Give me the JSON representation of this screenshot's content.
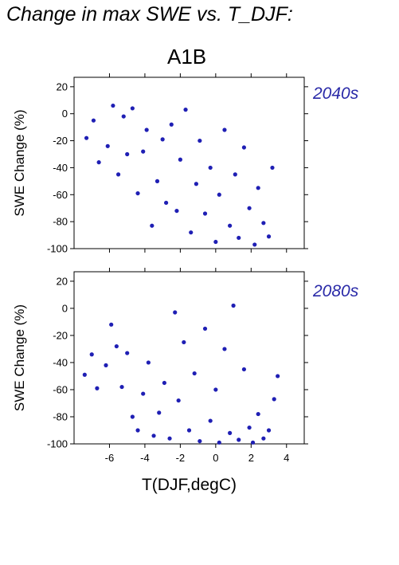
{
  "header": {
    "title": "Change in max SWE vs. T_DJF:",
    "scenario": "A1B"
  },
  "chart_data": [
    {
      "type": "scatter",
      "panel_label": "2040s",
      "xlabel": "",
      "ylabel": "SWE Change (%)",
      "xlim": [
        -8,
        5
      ],
      "ylim": [
        -100,
        27
      ],
      "xticks": [
        -6,
        -4,
        -2,
        0,
        2,
        4
      ],
      "yticks": [
        -100,
        -80,
        -60,
        -40,
        -20,
        0,
        20
      ],
      "marker_color": "#1f1fb4",
      "series": [
        {
          "points": [
            [
              -7.3,
              -18
            ],
            [
              -6.9,
              -5
            ],
            [
              -6.6,
              -36
            ],
            [
              -6.1,
              -24
            ],
            [
              -5.8,
              6
            ],
            [
              -5.5,
              -45
            ],
            [
              -5.2,
              -2
            ],
            [
              -5.0,
              -30
            ],
            [
              -4.7,
              4
            ],
            [
              -4.4,
              -59
            ],
            [
              -4.1,
              -28
            ],
            [
              -3.9,
              -12
            ],
            [
              -3.6,
              -83
            ],
            [
              -3.3,
              -50
            ],
            [
              -3.0,
              -19
            ],
            [
              -2.8,
              -66
            ],
            [
              -2.5,
              -8
            ],
            [
              -2.2,
              -72
            ],
            [
              -2.0,
              -34
            ],
            [
              -1.7,
              3
            ],
            [
              -1.4,
              -88
            ],
            [
              -1.1,
              -52
            ],
            [
              -0.9,
              -20
            ],
            [
              -0.6,
              -74
            ],
            [
              -0.3,
              -40
            ],
            [
              0.0,
              -95
            ],
            [
              0.2,
              -60
            ],
            [
              0.5,
              -12
            ],
            [
              0.8,
              -83
            ],
            [
              1.1,
              -45
            ],
            [
              1.3,
              -92
            ],
            [
              1.6,
              -25
            ],
            [
              1.9,
              -70
            ],
            [
              2.2,
              -97
            ],
            [
              2.4,
              -55
            ],
            [
              2.7,
              -81
            ],
            [
              3.0,
              -91
            ],
            [
              3.2,
              -40
            ]
          ]
        }
      ]
    },
    {
      "type": "scatter",
      "panel_label": "2080s",
      "xlabel": "T(DJF,degC)",
      "ylabel": "SWE Change (%)",
      "xlim": [
        -8,
        5
      ],
      "ylim": [
        -100,
        27
      ],
      "xticks": [
        -6,
        -4,
        -2,
        0,
        2,
        4
      ],
      "yticks": [
        -100,
        -80,
        -60,
        -40,
        -20,
        0,
        20
      ],
      "marker_color": "#1f1fb4",
      "series": [
        {
          "points": [
            [
              -7.4,
              -49
            ],
            [
              -7.0,
              -34
            ],
            [
              -6.7,
              -59
            ],
            [
              -6.2,
              -42
            ],
            [
              -5.9,
              -12
            ],
            [
              -5.6,
              -28
            ],
            [
              -5.3,
              -58
            ],
            [
              -5.0,
              -33
            ],
            [
              -4.7,
              -80
            ],
            [
              -4.4,
              -90
            ],
            [
              -4.1,
              -63
            ],
            [
              -3.8,
              -40
            ],
            [
              -3.5,
              -94
            ],
            [
              -3.2,
              -77
            ],
            [
              -2.9,
              -55
            ],
            [
              -2.6,
              -96
            ],
            [
              -2.3,
              -3
            ],
            [
              -2.1,
              -68
            ],
            [
              -1.8,
              -25
            ],
            [
              -1.5,
              -90
            ],
            [
              -1.2,
              -48
            ],
            [
              -0.9,
              -98
            ],
            [
              -0.6,
              -15
            ],
            [
              -0.3,
              -83
            ],
            [
              0.0,
              -60
            ],
            [
              0.2,
              -99
            ],
            [
              0.5,
              -30
            ],
            [
              0.8,
              -92
            ],
            [
              1.0,
              2
            ],
            [
              1.3,
              -97
            ],
            [
              1.6,
              -45
            ],
            [
              1.9,
              -88
            ],
            [
              2.1,
              -99
            ],
            [
              2.4,
              -78
            ],
            [
              2.7,
              -96
            ],
            [
              3.0,
              -90
            ],
            [
              3.3,
              -67
            ],
            [
              3.5,
              -50
            ]
          ]
        }
      ]
    }
  ]
}
